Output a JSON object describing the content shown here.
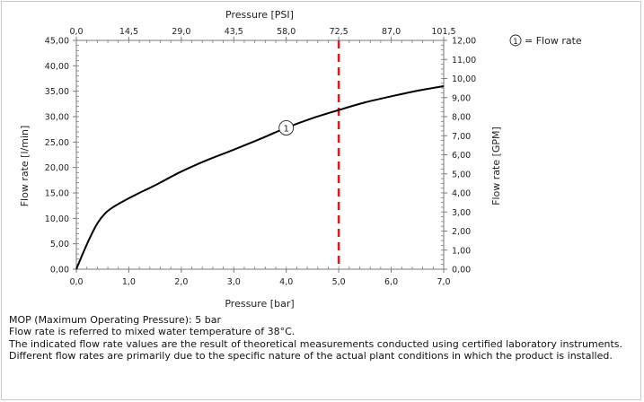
{
  "chart_data": {
    "type": "line",
    "x_bottom": {
      "label": "Pressure [bar]",
      "range": [
        0,
        7
      ],
      "ticks": [
        "0,0",
        "1,0",
        "2,0",
        "3,0",
        "4,0",
        "5,0",
        "6,0",
        "7,0"
      ]
    },
    "x_top": {
      "label": "Pressure [PSI]",
      "range": [
        0,
        101.5
      ],
      "ticks": [
        "0,0",
        "14,5",
        "29,0",
        "43,5",
        "58,0",
        "72,5",
        "87,0",
        "101,5"
      ]
    },
    "y_left": {
      "label": "Flow rate [l/min]",
      "range": [
        0,
        45
      ],
      "ticks": [
        "0,00",
        "5,00",
        "10,00",
        "15,00",
        "20,00",
        "25,00",
        "30,00",
        "35,00",
        "40,00",
        "45,00"
      ]
    },
    "y_right": {
      "label": "Flow rate [GPM]",
      "range": [
        0,
        12
      ],
      "ticks": [
        "0,00",
        "1,00",
        "2,00",
        "3,00",
        "4,00",
        "5,00",
        "6,00",
        "7,00",
        "8,00",
        "9,00",
        "10,00",
        "11,00",
        "12,00"
      ]
    },
    "series": [
      {
        "name": "Flow rate",
        "marker_label": "1",
        "color": "#000000",
        "x": [
          0,
          0.1,
          0.25,
          0.4,
          0.55,
          0.7,
          0.9,
          1.2,
          1.5,
          2.0,
          2.5,
          3.0,
          3.5,
          4.0,
          4.5,
          5.0,
          5.5,
          6.0,
          6.5,
          7.0
        ],
        "y": [
          0,
          2.5,
          6,
          9,
          11,
          12.2,
          13.4,
          15,
          16.5,
          19.2,
          21.5,
          23.5,
          25.6,
          27.8,
          29.7,
          31.3,
          32.8,
          34.0,
          35.1,
          36.0
        ]
      }
    ],
    "reference_line": {
      "x": 5,
      "color": "#cc2222",
      "style": "dashed"
    },
    "legend": {
      "text": "= Flow rate",
      "marker": "1",
      "position": "top-right"
    },
    "grid": false
  },
  "notes": [
    "MOP (Maximum Operating Pressure): 5 bar",
    "Flow rate is referred to mixed water temperature of 38°C.",
    "The indicated flow rate values are the result of theoretical measurements conducted using certified laboratory instruments.",
    "Different flow rates are primarily due to the specific nature of the actual plant conditions in which the product is installed."
  ]
}
